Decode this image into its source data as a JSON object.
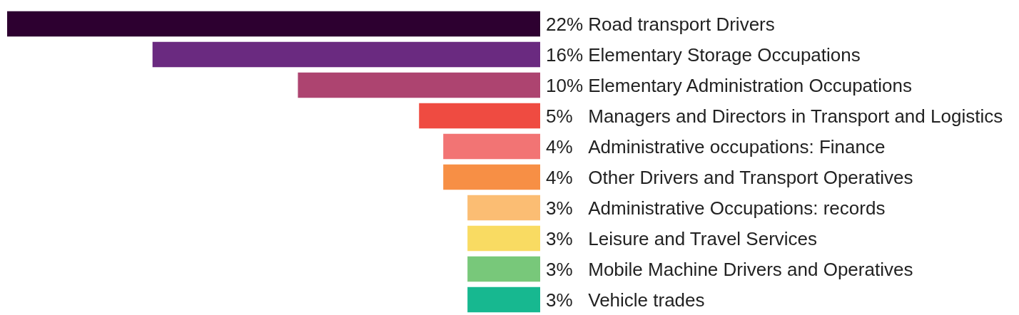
{
  "chart_data": {
    "type": "bar",
    "orientation": "horizontal",
    "categories": [
      "Road transport Drivers",
      "Elementary Storage Occupations",
      "Elementary Administration Occupations",
      "Managers and Directors in Transport and Logistics",
      "Administrative occupations: Finance",
      "Other Drivers and Transport Operatives",
      "Administrative Occupations: records",
      "Leisure and Travel Services",
      "Mobile Machine Drivers and Operatives",
      "Vehicle trades"
    ],
    "values": [
      22,
      16,
      10,
      5,
      4,
      4,
      3,
      3,
      3,
      3
    ],
    "value_labels": [
      "22%",
      "16%",
      "10%",
      "5%",
      "4%",
      "4%",
      "3%",
      "3%",
      "3%",
      "3%"
    ],
    "colors": [
      "#2d0030",
      "#6a2a80",
      "#ad4470",
      "#ef4b41",
      "#f27474",
      "#f78f45",
      "#fbbd73",
      "#f9db62",
      "#78c87a",
      "#17b890"
    ]
  }
}
